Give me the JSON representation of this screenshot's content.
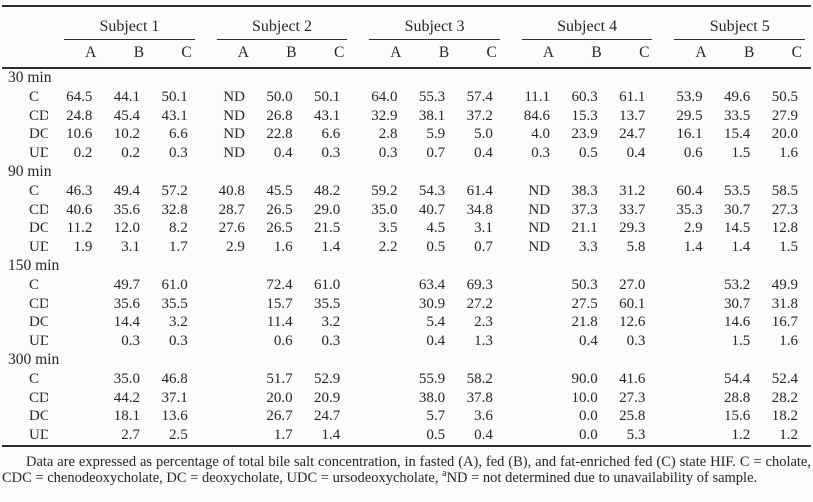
{
  "colors": {
    "background": "#fcfcfb",
    "text": "#23272b",
    "rule": "#2b2f33"
  },
  "table": {
    "subjects": [
      "Subject 1",
      "Subject 2",
      "Subject 3",
      "Subject 4",
      "Subject 5"
    ],
    "sub_columns": [
      "A",
      "B",
      "C"
    ],
    "sections": [
      {
        "label": "30 min",
        "rows": [
          {
            "label": "C",
            "values": [
              "64.5",
              "44.1",
              "50.1",
              "ND",
              "50.0",
              "50.1",
              "64.0",
              "55.3",
              "57.4",
              "11.1",
              "60.3",
              "61.1",
              "53.9",
              "49.6",
              "50.5"
            ]
          },
          {
            "label": "CDC",
            "values": [
              "24.8",
              "45.4",
              "43.1",
              "ND",
              "26.8",
              "43.1",
              "32.9",
              "38.1",
              "37.2",
              "84.6",
              "15.3",
              "13.7",
              "29.5",
              "33.5",
              "27.9"
            ]
          },
          {
            "label": "DC",
            "values": [
              "10.6",
              "10.2",
              "6.6",
              "ND",
              "22.8",
              "6.6",
              "2.8",
              "5.9",
              "5.0",
              "4.0",
              "23.9",
              "24.7",
              "16.1",
              "15.4",
              "20.0"
            ]
          },
          {
            "label": "UDC",
            "values": [
              "0.2",
              "0.2",
              "0.3",
              "ND",
              "0.4",
              "0.3",
              "0.3",
              "0.7",
              "0.4",
              "0.3",
              "0.5",
              "0.4",
              "0.6",
              "1.5",
              "1.6"
            ]
          }
        ]
      },
      {
        "label": "90 min",
        "rows": [
          {
            "label": "C",
            "values": [
              "46.3",
              "49.4",
              "57.2",
              "40.8",
              "45.5",
              "48.2",
              "59.2",
              "54.3",
              "61.4",
              "ND",
              "38.3",
              "31.2",
              "60.4",
              "53.5",
              "58.5"
            ]
          },
          {
            "label": "CDC",
            "values": [
              "40.6",
              "35.6",
              "32.8",
              "28.7",
              "26.5",
              "29.0",
              "35.0",
              "40.7",
              "34.8",
              "ND",
              "37.3",
              "33.7",
              "35.3",
              "30.7",
              "27.3"
            ]
          },
          {
            "label": "DC",
            "values": [
              "11.2",
              "12.0",
              "8.2",
              "27.6",
              "26.5",
              "21.5",
              "3.5",
              "4.5",
              "3.1",
              "ND",
              "21.1",
              "29.3",
              "2.9",
              "14.5",
              "12.8"
            ]
          },
          {
            "label": "UDC",
            "values": [
              "1.9",
              "3.1",
              "1.7",
              "2.9",
              "1.6",
              "1.4",
              "2.2",
              "0.5",
              "0.7",
              "ND",
              "3.3",
              "5.8",
              "1.4",
              "1.4",
              "1.5"
            ]
          }
        ]
      },
      {
        "label": "150 min",
        "rows": [
          {
            "label": "C",
            "values": [
              "",
              "49.7",
              "61.0",
              "",
              "72.4",
              "61.0",
              "",
              "63.4",
              "69.3",
              "",
              "50.3",
              "27.0",
              "",
              "53.2",
              "49.9"
            ]
          },
          {
            "label": "CDC",
            "values": [
              "",
              "35.6",
              "35.5",
              "",
              "15.7",
              "35.5",
              "",
              "30.9",
              "27.2",
              "",
              "27.5",
              "60.1",
              "",
              "30.7",
              "31.8"
            ]
          },
          {
            "label": "DC",
            "values": [
              "",
              "14.4",
              "3.2",
              "",
              "11.4",
              "3.2",
              "",
              "5.4",
              "2.3",
              "",
              "21.8",
              "12.6",
              "",
              "14.6",
              "16.7"
            ]
          },
          {
            "label": "UDC",
            "values": [
              "",
              "0.3",
              "0.3",
              "",
              "0.6",
              "0.3",
              "",
              "0.4",
              "1.3",
              "",
              "0.4",
              "0.3",
              "",
              "1.5",
              "1.6"
            ]
          }
        ]
      },
      {
        "label": "300 min",
        "rows": [
          {
            "label": "C",
            "values": [
              "",
              "35.0",
              "46.8",
              "",
              "51.7",
              "52.9",
              "",
              "55.9",
              "58.2",
              "",
              "90.0",
              "41.6",
              "",
              "54.4",
              "52.4"
            ]
          },
          {
            "label": "CDC",
            "values": [
              "",
              "44.2",
              "37.1",
              "",
              "20.0",
              "20.9",
              "",
              "38.0",
              "37.8",
              "",
              "10.0",
              "27.3",
              "",
              "28.8",
              "28.2"
            ]
          },
          {
            "label": "DC",
            "values": [
              "",
              "18.1",
              "13.6",
              "",
              "26.7",
              "24.7",
              "",
              "5.7",
              "3.6",
              "",
              "0.0",
              "25.8",
              "",
              "15.6",
              "18.2"
            ]
          },
          {
            "label": "UDC",
            "values": [
              "",
              "2.7",
              "2.5",
              "",
              "1.7",
              "1.4",
              "",
              "0.5",
              "0.4",
              "",
              "0.0",
              "5.3",
              "",
              "1.2",
              "1.2"
            ]
          }
        ]
      }
    ]
  },
  "footnote": {
    "part1": "Data are expressed as percentage of total bile salt concentration, in fasted (A), fed (B), and fat-enriched fed (C) state HIF. C = cholate, CDC = chenodeoxycholate, DC = deoxycholate, UDC = ursodeoxycholate, ",
    "sup": "a",
    "part2": "ND = not determined due to unavailability of sample."
  }
}
